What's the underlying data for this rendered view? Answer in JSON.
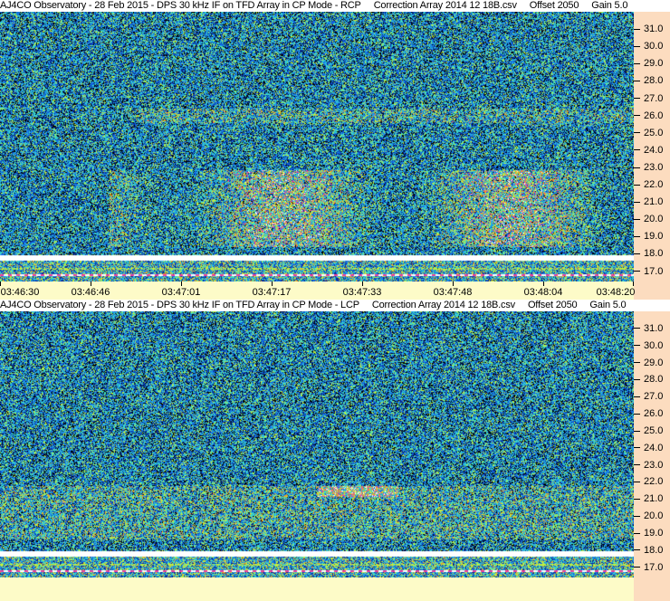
{
  "chart_data": [
    {
      "type": "heatmap",
      "title": "AJ4CO Observatory - 28 Feb 2015 - DPS 30 kHz IF on TFD Array in CP Mode - RCP",
      "correction": "Correction Array 2014 12 18B.csv",
      "offset": "Offset 2050",
      "gain": "Gain 5.0",
      "y_ticks": [
        "31.0",
        "30.0",
        "29.0",
        "28.0",
        "27.0",
        "26.0",
        "25.0",
        "24.0",
        "23.0",
        "22.0",
        "21.0",
        "20.0",
        "19.0",
        "18.0",
        "17.0"
      ],
      "ylim": [
        16.4,
        32.0
      ],
      "x_ticks": [
        "03:46:30",
        "03:46:46",
        "03:47:01",
        "03:47:17",
        "03:47:33",
        "03:47:48",
        "03:48:04",
        "03:48:20"
      ],
      "colormap": [
        "#000000",
        "#0a2a8c",
        "#1060e0",
        "#20a0e8",
        "#40e0c0",
        "#c0f040",
        "#f0a020",
        "#f040a0",
        "#ffffff"
      ]
    },
    {
      "type": "heatmap",
      "title": "AJ4CO Observatory - 28 Feb 2015 - DPS 30 kHz IF on TFD Array in CP Mode - LCP",
      "correction": "Correction Array 2014 12 18B.csv",
      "offset": "Offset 2050",
      "gain": "Gain 5.0",
      "y_ticks": [
        "31.0",
        "30.0",
        "29.0",
        "28.0",
        "27.0",
        "26.0",
        "25.0",
        "24.0",
        "23.0",
        "22.0",
        "21.0",
        "20.0",
        "19.0",
        "18.0",
        "17.0"
      ],
      "ylim": [
        16.4,
        32.0
      ]
    }
  ]
}
